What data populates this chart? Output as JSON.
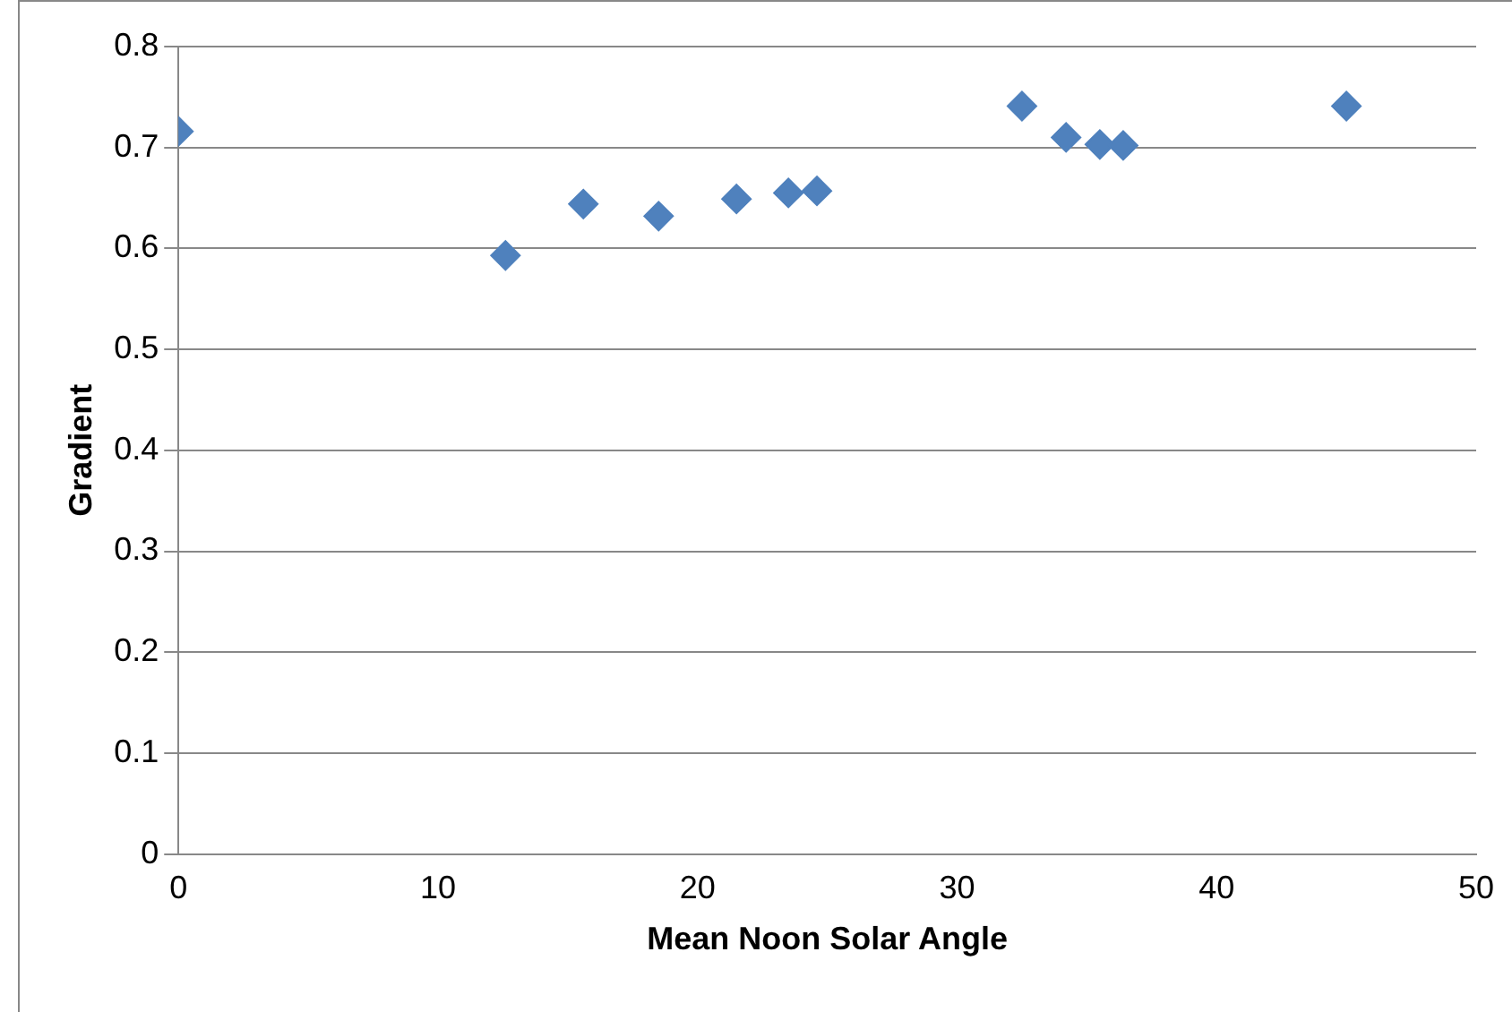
{
  "chart_data": {
    "type": "scatter",
    "xlabel": "Mean Noon Solar Angle",
    "ylabel": "Gradient",
    "x": [
      0,
      12.6,
      15.6,
      18.5,
      21.5,
      23.5,
      24.6,
      32.5,
      34.2,
      35.5,
      36.4,
      45
    ],
    "series": [
      {
        "color": "#4f81bd",
        "values": [
          0.716,
          0.593,
          0.644,
          0.632,
          0.649,
          0.655,
          0.657,
          0.741,
          0.71,
          0.703,
          0.702,
          0.741
        ]
      }
    ],
    "xlim": [
      0,
      50
    ],
    "xticks": [
      0,
      10,
      20,
      30,
      40,
      50
    ],
    "ylim": [
      0,
      0.8
    ],
    "yticks": [
      0,
      0.1,
      0.2,
      0.3,
      0.4,
      0.5,
      0.6,
      0.7,
      0.8
    ],
    "grid": "y",
    "legend": false,
    "marker": "diamond"
  }
}
